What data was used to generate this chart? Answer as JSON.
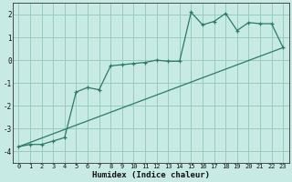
{
  "xlabel": "Humidex (Indice chaleur)",
  "bg_color": "#c8eae4",
  "grid_color": "#99ccbb",
  "line_color": "#2a7a6a",
  "xlim": [
    -0.5,
    23.5
  ],
  "ylim": [
    -4.5,
    2.5
  ],
  "xticks": [
    0,
    1,
    2,
    3,
    4,
    5,
    6,
    7,
    8,
    9,
    10,
    11,
    12,
    13,
    14,
    15,
    16,
    17,
    18,
    19,
    20,
    21,
    22,
    23
  ],
  "yticks": [
    -4,
    -3,
    -2,
    -1,
    0,
    1,
    2
  ],
  "line1_x": [
    0,
    1,
    2,
    3,
    4,
    5,
    6,
    7,
    8,
    9,
    10,
    11,
    12,
    13,
    14,
    15,
    16,
    17,
    18,
    19,
    20,
    21,
    22,
    23
  ],
  "line1_y": [
    -3.8,
    -3.7,
    -3.7,
    -3.55,
    -3.4,
    -1.4,
    -1.2,
    -1.3,
    -0.25,
    -0.2,
    -0.15,
    -0.1,
    0.0,
    -0.05,
    -0.05,
    2.1,
    1.55,
    1.7,
    2.05,
    1.3,
    1.65,
    1.6,
    1.6,
    0.55
  ],
  "line2_x": [
    0,
    23
  ],
  "line2_y": [
    -3.8,
    0.55
  ]
}
